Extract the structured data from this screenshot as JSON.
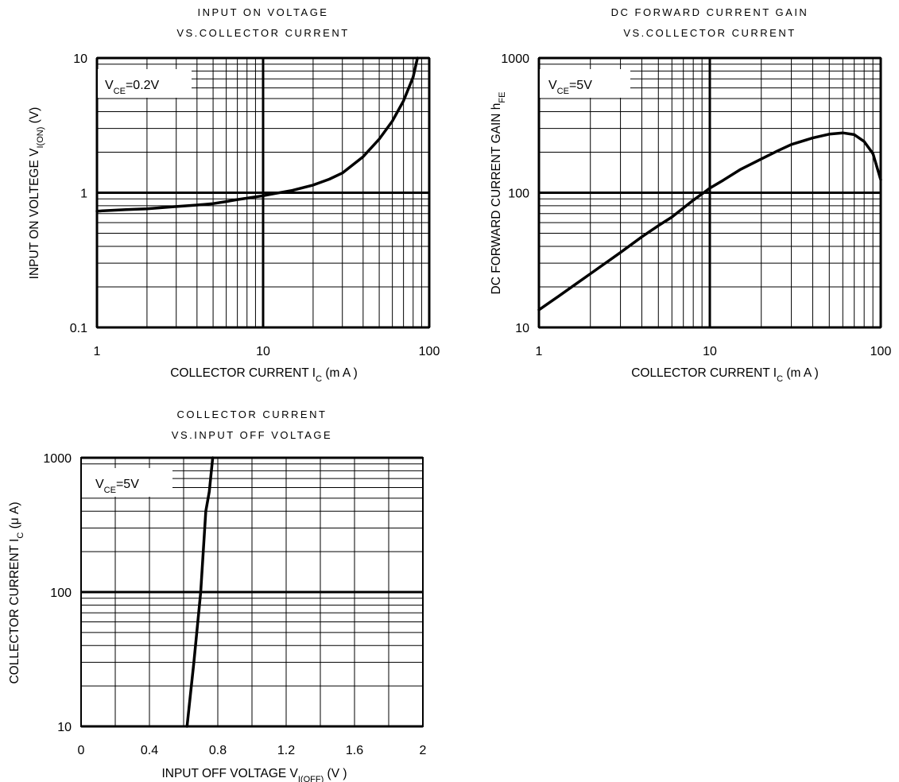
{
  "chart_data": [
    {
      "type": "line",
      "title_lines": [
        "INPUT ON VOLTAGE",
        "VS.COLLECTOR CURRENT"
      ],
      "xlabel": {
        "main": "COLLECTOR CURRENT   I",
        "sub": "C",
        "unit": " (m A )"
      },
      "ylabel": {
        "main": "INPUT ON VOLTEGE  V",
        "sub": "I(ON)",
        "unit": " (V)"
      },
      "x_scale": "log",
      "y_scale": "log",
      "xlim": [
        1,
        100
      ],
      "ylim": [
        0.1,
        10
      ],
      "x_ticks": [
        {
          "v": 1,
          "label": "1"
        },
        {
          "v": 10,
          "label": "10"
        },
        {
          "v": 100,
          "label": "100"
        }
      ],
      "y_ticks": [
        {
          "v": 0.1,
          "label": "0.1"
        },
        {
          "v": 1,
          "label": "1"
        },
        {
          "v": 10,
          "label": "10"
        }
      ],
      "annotation": {
        "main": "V",
        "sub": "CE",
        "rest": "=0.2V"
      },
      "grid": true,
      "series": [
        {
          "x": [
            1,
            1.5,
            2,
            3,
            4,
            5,
            6,
            7,
            8,
            10,
            12,
            15,
            20,
            25,
            30,
            40,
            50,
            60,
            70,
            80,
            85
          ],
          "y": [
            0.73,
            0.75,
            0.76,
            0.79,
            0.81,
            0.83,
            0.86,
            0.89,
            0.91,
            0.95,
            0.99,
            1.04,
            1.14,
            1.26,
            1.4,
            1.85,
            2.5,
            3.4,
            4.8,
            7.2,
            10
          ]
        }
      ]
    },
    {
      "type": "line",
      "title_lines": [
        "DC FORWARD CURRENT GAIN",
        "VS.COLLECTOR CURRENT"
      ],
      "xlabel": {
        "main": "COLLECTOR CURRENT   I",
        "sub": "C",
        "unit": " (m A )"
      },
      "ylabel": {
        "main": "DC FORWARD CURRENT GAIN  h",
        "sub": "FE",
        "unit": ""
      },
      "x_scale": "log",
      "y_scale": "log",
      "xlim": [
        1,
        100
      ],
      "ylim": [
        10,
        1000
      ],
      "x_ticks": [
        {
          "v": 1,
          "label": "1"
        },
        {
          "v": 10,
          "label": "10"
        },
        {
          "v": 100,
          "label": "100"
        }
      ],
      "y_ticks": [
        {
          "v": 10,
          "label": "10"
        },
        {
          "v": 100,
          "label": "100"
        },
        {
          "v": 1000,
          "label": "1000"
        }
      ],
      "annotation": {
        "main": "V",
        "sub": "CE",
        "rest": "=5V"
      },
      "grid": true,
      "series": [
        {
          "x": [
            1,
            1.3,
            1.6,
            2,
            3,
            4,
            5,
            6,
            7,
            8,
            10,
            12,
            15,
            20,
            25,
            30,
            40,
            50,
            60,
            70,
            80,
            90,
            100
          ],
          "y": [
            13.5,
            17,
            20.5,
            25,
            36,
            47,
            57,
            66,
            77,
            88,
            108,
            124,
            148,
            178,
            205,
            228,
            255,
            272,
            278,
            270,
            240,
            195,
            125
          ]
        }
      ]
    },
    {
      "type": "line",
      "title_lines": [
        "COLLECTOR CURRENT",
        "VS.INPUT OFF VOLTAGE"
      ],
      "xlabel": {
        "main": "INPUT OFF VOLTAGE   V",
        "sub": "I(OFF)",
        "unit": " (V )"
      },
      "ylabel": {
        "main": "COLLECTOR CURRENT   I",
        "sub": "C",
        "unit": " (μ A)"
      },
      "x_scale": "linear",
      "y_scale": "log",
      "xlim": [
        0,
        2
      ],
      "ylim": [
        10,
        1000
      ],
      "x_ticks": [
        {
          "v": 0,
          "label": "0"
        },
        {
          "v": 0.4,
          "label": "0.4"
        },
        {
          "v": 0.8,
          "label": "0.8"
        },
        {
          "v": 1.2,
          "label": "1.2"
        },
        {
          "v": 1.6,
          "label": "1.6"
        },
        {
          "v": 2,
          "label": "2"
        }
      ],
      "y_ticks": [
        {
          "v": 10,
          "label": "10"
        },
        {
          "v": 100,
          "label": "100"
        },
        {
          "v": 1000,
          "label": "1000"
        }
      ],
      "annotation": {
        "main": "V",
        "sub": "CE",
        "rest": "=5V"
      },
      "grid": true,
      "series": [
        {
          "x": [
            0.62,
            0.66,
            0.7,
            0.73,
            0.75,
            0.77
          ],
          "y": [
            10,
            30,
            100,
            400,
            560,
            1000
          ]
        }
      ]
    }
  ]
}
